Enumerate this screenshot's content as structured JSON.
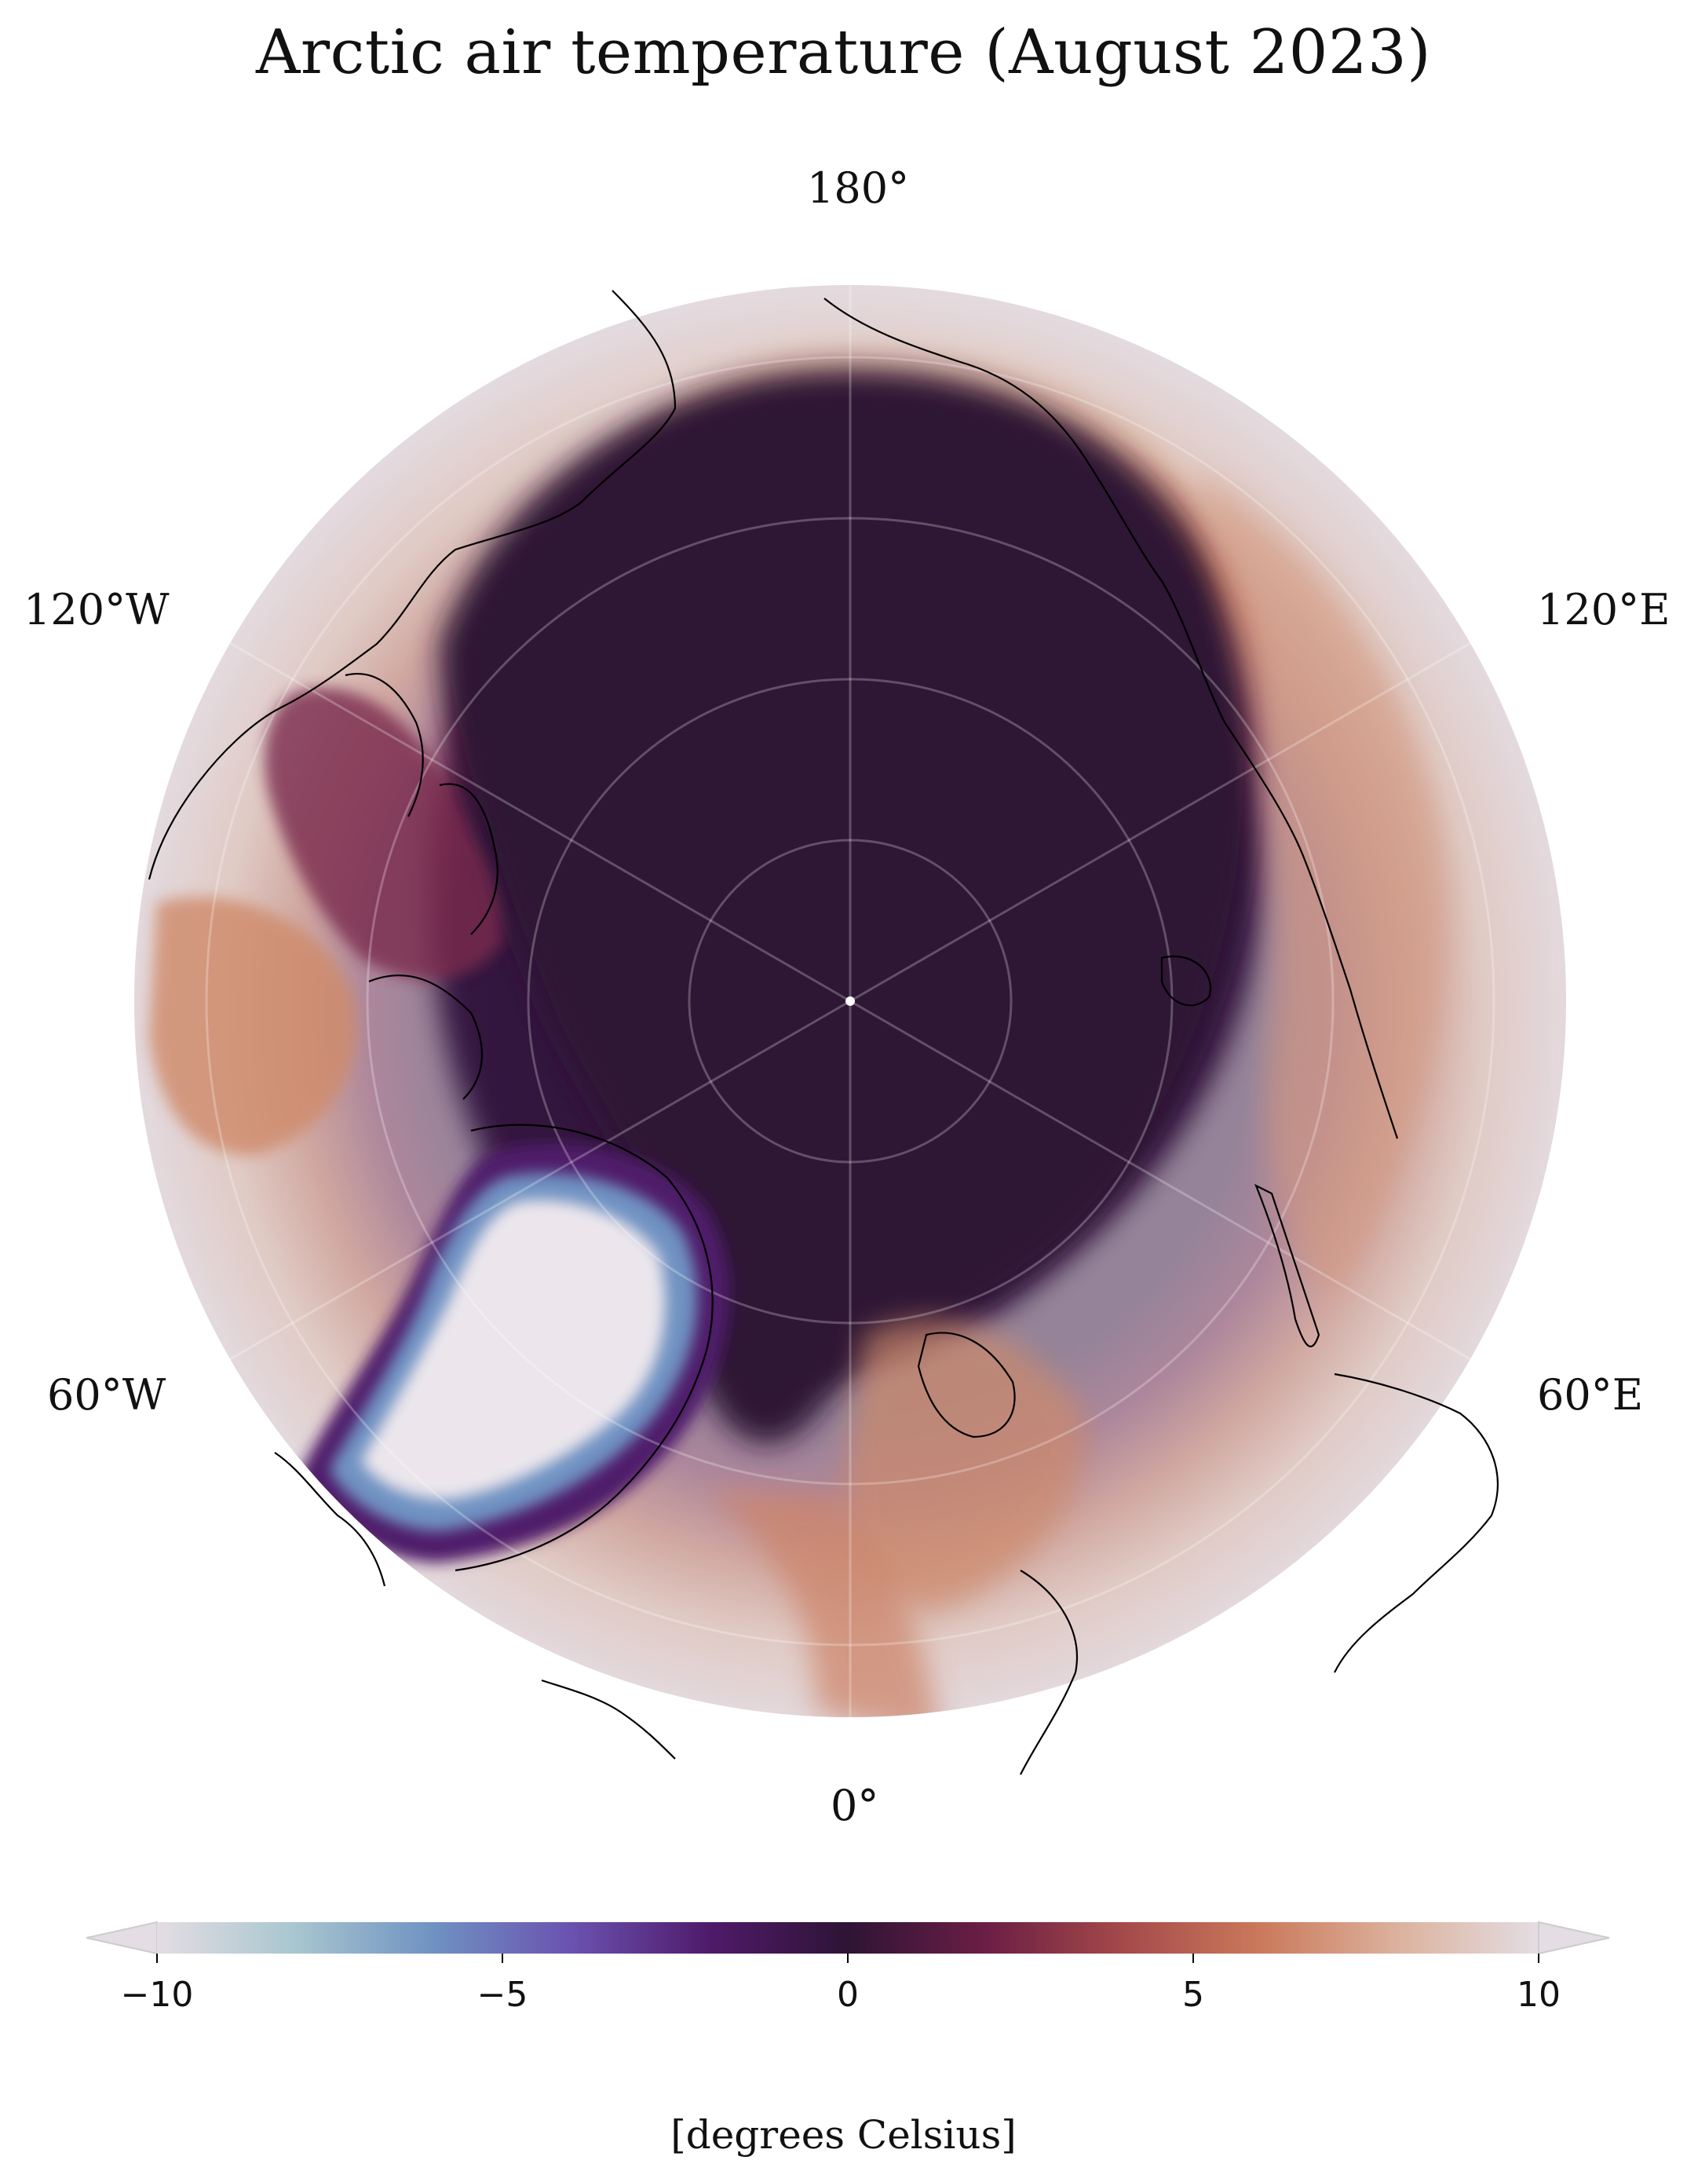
{
  "title": "Arctic air temperature (August 2023)",
  "longitude_labels": {
    "top": "180°",
    "bottom": "0°",
    "upper_left": "120°W",
    "upper_right": "120°E",
    "lower_left": "60°W",
    "lower_right": "60°E"
  },
  "colorbar": {
    "ticks": [
      "−10",
      "−5",
      "0",
      "5",
      "10"
    ],
    "tick_values": [
      -10,
      -5,
      0,
      5,
      10
    ],
    "label": "[degrees Celsius]",
    "extend": "both",
    "colormap_stops": [
      {
        "value": -10,
        "color": "#e4dde3"
      },
      {
        "value": -8,
        "color": "#a8c6cf"
      },
      {
        "value": -6,
        "color": "#6f92c2"
      },
      {
        "value": -4,
        "color": "#6a52b0"
      },
      {
        "value": -2,
        "color": "#4f1a6a"
      },
      {
        "value": 0,
        "color": "#2e1435"
      },
      {
        "value": 2,
        "color": "#6b1e45"
      },
      {
        "value": 4,
        "color": "#a54a4a"
      },
      {
        "value": 6,
        "color": "#cb7a5c"
      },
      {
        "value": 8,
        "color": "#dcb39e"
      },
      {
        "value": 10,
        "color": "#e4dde3"
      }
    ]
  },
  "map": {
    "projection": "north polar stereographic",
    "background_color": "#e4dde3",
    "ocean_core_color": "#2e1435",
    "greenland_color": "#e8e2e8",
    "coastline_color": "#000000",
    "gridline_color": "#ffffff"
  }
}
